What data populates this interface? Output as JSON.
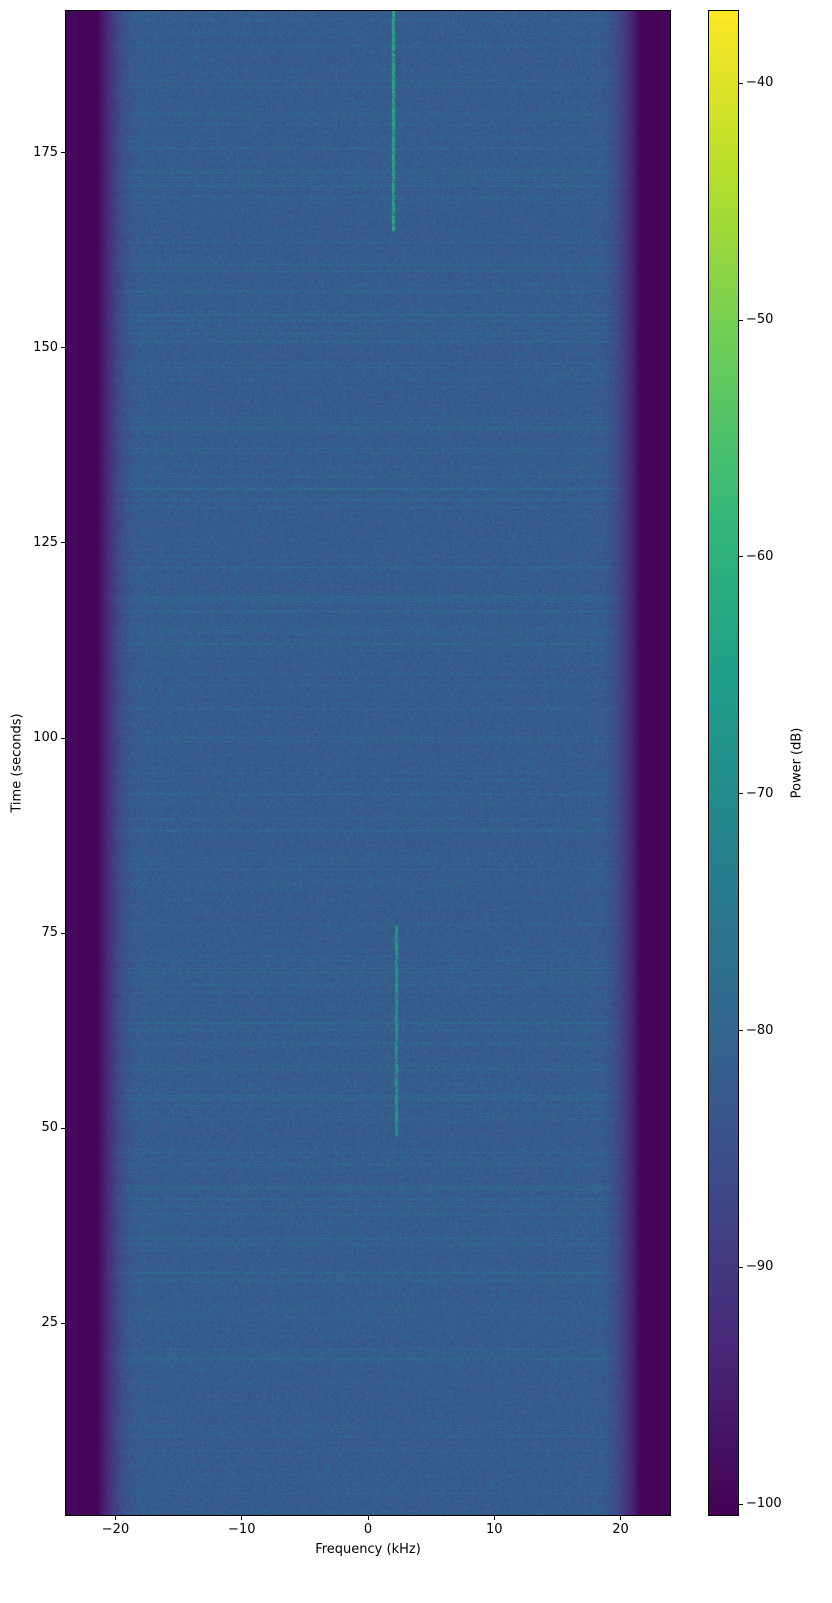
{
  "chart_data": {
    "type": "heatmap",
    "subtype": "spectrogram",
    "xlabel": "Frequency (kHz)",
    "ylabel": "Time (seconds)",
    "colorbar_label": "Power (dB)",
    "colormap": "viridis",
    "xlim": [
      -24,
      24
    ],
    "ylim": [
      0.3,
      193.3
    ],
    "clim": [
      -100.5,
      -36.9
    ],
    "xticks": [
      -20,
      -10,
      0,
      10,
      20
    ],
    "xtick_labels": [
      "−20",
      "−10",
      "0",
      "10",
      "20"
    ],
    "yticks": [
      25,
      50,
      75,
      100,
      125,
      150,
      175
    ],
    "ytick_labels": [
      "25",
      "50",
      "75",
      "100",
      "125",
      "150",
      "175"
    ],
    "cticks": [
      -40,
      -50,
      -60,
      -70,
      -80,
      -90,
      -100
    ],
    "ctick_labels": [
      "−40",
      "−50",
      "−60",
      "−70",
      "−80",
      "−90",
      "−100"
    ],
    "noise_floor_db": -82,
    "band_edge_khz": 20,
    "edge_floor_db": -100,
    "tones": [
      {
        "freq_khz": 2.0,
        "t_start": 165,
        "t_end": 193.3,
        "power_db": -62
      },
      {
        "freq_khz": 2.2,
        "t_start": 49,
        "t_end": 76,
        "power_db": -67
      }
    ]
  }
}
